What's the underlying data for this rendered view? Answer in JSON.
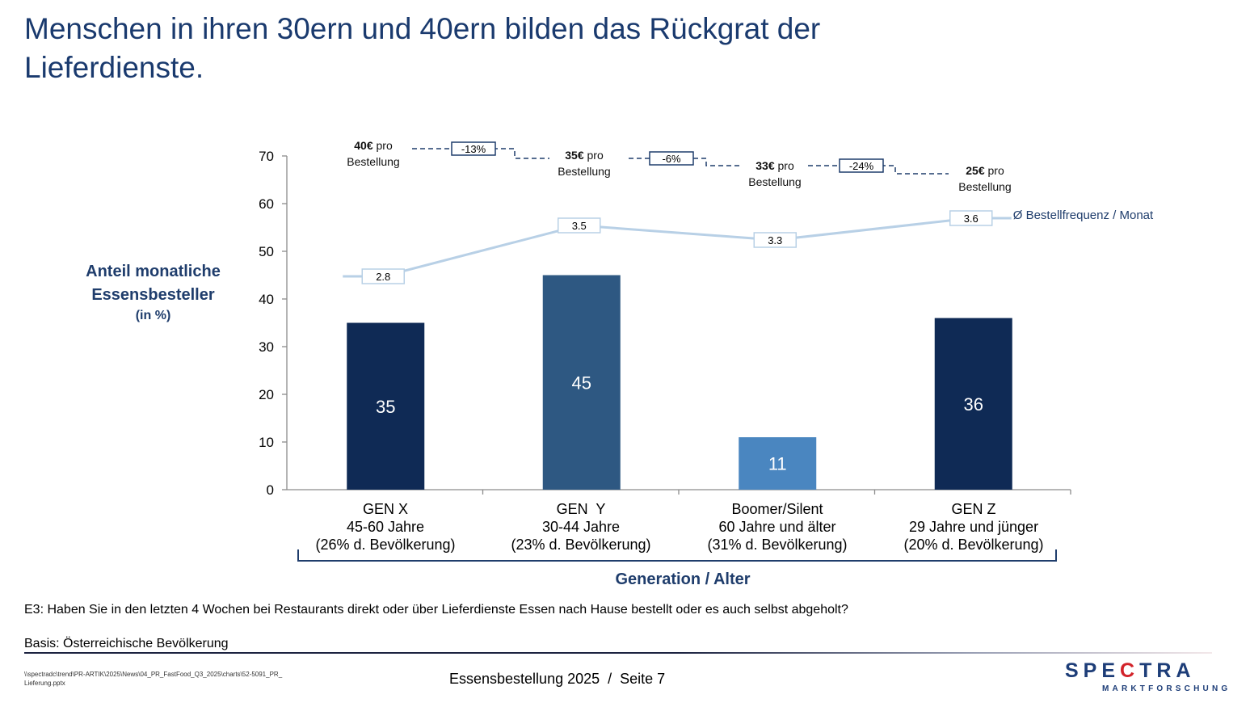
{
  "slide": {
    "title": "Menschen in ihren 30ern und 40ern bilden das Rückgrat der Lieferdienste.",
    "question": "E3: Haben Sie in den letzten 4 Wochen bei Restaurants direkt oder über Lieferdienste Essen nach Hause bestellt oder es auch selbst abgeholt?",
    "basis": "Basis: Österreichische Bevölkerung",
    "file_path": "\\\\spectradc\\trend\\PR-ARTIK\\2025\\News\\04_PR_FastFood_Q3_2025\\charts\\52-5091_PR_Lieferung.pptx",
    "footer": "Essensbestellung 2025  /  Seite 7",
    "logo": {
      "main_before": "SPE",
      "main_accent": "C",
      "main_after": "TRA",
      "sub": "MARKTFORSCHUNG"
    }
  },
  "chart_data": {
    "type": "bar",
    "title": "Menschen in ihren 30ern und 40ern bilden das Rückgrat der Lieferdienste.",
    "ylabel": "Anteil monatliche Essensbesteller",
    "ylabel_unit": "(in %)",
    "xlabel": "Generation / Alter",
    "ylim": [
      0,
      70
    ],
    "yticks": [
      0,
      10,
      20,
      30,
      40,
      50,
      60,
      70
    ],
    "grid": false,
    "categories": [
      {
        "name": "GEN X",
        "age": "45-60 Jahre",
        "population": "(26% d. Bevölkerung)"
      },
      {
        "name": "GEN  Y",
        "age": "30-44 Jahre",
        "population": "(23% d. Bevölkerung)"
      },
      {
        "name": "Boomer/Silent",
        "age": "60 Jahre und älter",
        "population": "(31% d. Bevölkerung)"
      },
      {
        "name": "GEN Z",
        "age": "29 Jahre und jünger",
        "population": "(20% d. Bevölkerung)"
      }
    ],
    "series": [
      {
        "name": "Anteil monatliche Essensbesteller (in %)",
        "type": "bar",
        "values": [
          35,
          45,
          11,
          36
        ],
        "colors": [
          "#0f2a55",
          "#2e5882",
          "#4a86c0",
          "#0f2a55"
        ]
      },
      {
        "name": "Ø Bestellfrequenz / Monat",
        "type": "line",
        "values": [
          2.8,
          3.5,
          3.3,
          3.6
        ],
        "color": "#b8d0e6"
      }
    ],
    "price_per_order": [
      {
        "amount": "40€",
        "suffix": "pro",
        "label": "Bestellung"
      },
      {
        "amount": "35€",
        "suffix": "pro",
        "label": "Bestellung"
      },
      {
        "amount": "33€",
        "suffix": "pro",
        "label": "Bestellung"
      },
      {
        "amount": "25€",
        "suffix": "pro",
        "label": "Bestellung"
      }
    ],
    "price_changes": [
      "-13%",
      "-6%",
      "-24%"
    ],
    "line_legend": "Ø Bestellfrequenz / Monat"
  }
}
